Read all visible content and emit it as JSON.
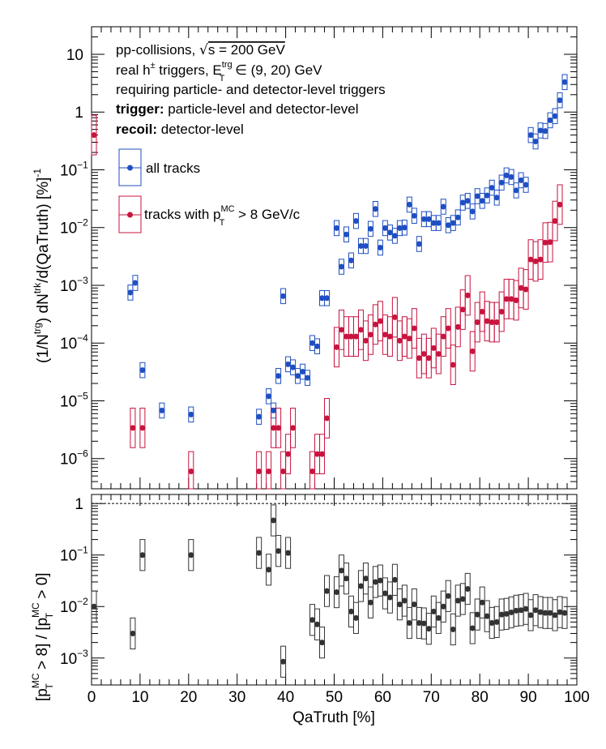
{
  "colors": {
    "all_tracks": "#1f4fc2",
    "hpt_tracks": "#c8143f",
    "ratio": "#333333",
    "axis": "#000000"
  },
  "annotation": {
    "line1": "pp-collisions, ",
    "line1_sqrt": "√",
    "line1_rest": "s = 200 GeV",
    "line2_a": "real h",
    "line2_sup": "±",
    "line2_b": " triggers, E",
    "line2_sup2": "trg",
    "line2_sub": "T",
    "line2_c": " ∈ (9, 20) GeV",
    "line3": "requiring particle- and detector-level triggers",
    "line4_bold": "trigger:",
    "line4_rest": " particle-level and detector-level",
    "line5_bold": "recoil:",
    "line5_rest": " detector-level"
  },
  "legend": {
    "all": "all tracks",
    "hpt_a": "tracks with p",
    "hpt_sup": "MC",
    "hpt_sub": "T",
    "hpt_b": " > 8 GeV/c"
  },
  "top_axis": {
    "ylabel_a": "(1/N",
    "ylabel_sup1": "trg",
    "ylabel_b": ") dN",
    "ylabel_sup2": "trk",
    "ylabel_c": "/d(QaTruth) [%]",
    "ylabel_sup3": "-1",
    "ticks": [
      {
        "value": 10,
        "label": "10"
      },
      {
        "value": 1,
        "label": "1"
      },
      {
        "value": 0.1,
        "label": "10",
        "exp": "−1"
      },
      {
        "value": 0.01,
        "label": "10",
        "exp": "−2"
      },
      {
        "value": 0.001,
        "label": "10",
        "exp": "−3"
      },
      {
        "value": 0.0001,
        "label": "10",
        "exp": "−4"
      },
      {
        "value": 1e-05,
        "label": "10",
        "exp": "−5"
      },
      {
        "value": 1e-06,
        "label": "10",
        "exp": "−6"
      }
    ]
  },
  "bottom_axis": {
    "ylabel_a": "[p",
    "ylabel_sup1": "MC",
    "ylabel_sub1": "T",
    "ylabel_b": " > 8] / [p",
    "ylabel_sup2": "MC",
    "ylabel_sub2": "T",
    "ylabel_c": " > 0]",
    "ticks": [
      {
        "value": 1,
        "label": "1"
      },
      {
        "value": 0.1,
        "label": "10",
        "exp": "−1"
      },
      {
        "value": 0.01,
        "label": "10",
        "exp": "−2"
      },
      {
        "value": 0.001,
        "label": "10",
        "exp": "−3"
      }
    ]
  },
  "xaxis": {
    "label": "QaTruth [%]",
    "ticks": [
      "0",
      "10",
      "20",
      "30",
      "40",
      "50",
      "60",
      "70",
      "80",
      "90",
      "100"
    ]
  },
  "chart_data": [
    {
      "type": "scatter",
      "yscale": "log",
      "xlim": [
        0,
        100
      ],
      "ylim": [
        3e-07,
        30
      ],
      "series": [
        {
          "name": "all tracks",
          "points": [
            [
              8,
              0.00075
            ],
            [
              9,
              0.0011
            ],
            [
              10.5,
              3.4e-05
            ],
            [
              14.5,
              6.8e-06
            ],
            [
              20.5,
              5.8e-06
            ],
            [
              34.5,
              5.3e-06
            ],
            [
              36.5,
              1.2e-05
            ],
            [
              37.5,
              6.8e-06
            ],
            [
              38.5,
              2.7e-05
            ],
            [
              39.5,
              0.00065
            ],
            [
              40.5,
              4.3e-05
            ],
            [
              41.5,
              3.8e-05
            ],
            [
              42.5,
              2.7e-05
            ],
            [
              43.5,
              3.2e-05
            ],
            [
              44.5,
              2.5e-05
            ],
            [
              45.5,
              0.0001
            ],
            [
              46.5,
              8.8e-05
            ],
            [
              47.5,
              0.0006
            ],
            [
              48.5,
              0.0006
            ],
            [
              50.5,
              0.0098
            ],
            [
              51.5,
              0.0021
            ],
            [
              52.5,
              0.0076
            ],
            [
              53.5,
              0.0027
            ],
            [
              54.5,
              0.013
            ],
            [
              55.5,
              0.0048
            ],
            [
              56.5,
              0.0048
            ],
            [
              57.5,
              0.0095
            ],
            [
              58.5,
              0.021
            ],
            [
              59.5,
              0.0045
            ],
            [
              60.5,
              0.0098
            ],
            [
              61.5,
              0.0082
            ],
            [
              62.5,
              0.0072
            ],
            [
              63.5,
              0.0098
            ],
            [
              64.5,
              0.01
            ],
            [
              65.5,
              0.025
            ],
            [
              66.5,
              0.016
            ],
            [
              67.5,
              0.0052
            ],
            [
              68.5,
              0.014
            ],
            [
              69.5,
              0.014
            ],
            [
              70.5,
              0.012
            ],
            [
              71.5,
              0.012
            ],
            [
              72.5,
              0.023
            ],
            [
              73.5,
              0.011
            ],
            [
              74.5,
              0.012
            ],
            [
              75.5,
              0.015
            ],
            [
              76.5,
              0.027
            ],
            [
              77.5,
              0.029
            ],
            [
              78.5,
              0.019
            ],
            [
              79.5,
              0.035
            ],
            [
              80.5,
              0.029
            ],
            [
              81.5,
              0.036
            ],
            [
              82.5,
              0.049
            ],
            [
              83.5,
              0.033
            ],
            [
              84.5,
              0.06
            ],
            [
              85.5,
              0.08
            ],
            [
              86.5,
              0.075
            ],
            [
              87.5,
              0.044
            ],
            [
              88.5,
              0.066
            ],
            [
              89.5,
              0.055
            ],
            [
              90.5,
              0.4
            ],
            [
              91.5,
              0.31
            ],
            [
              92.5,
              0.48
            ],
            [
              93.5,
              0.47
            ],
            [
              94.5,
              0.72
            ],
            [
              95.5,
              0.85
            ],
            [
              96.5,
              1.6
            ],
            [
              97.5,
              3.3
            ]
          ]
        },
        {
          "name": "tracks with pT(MC) > 8 GeV/c",
          "points": [
            [
              0.5,
              0.4
            ],
            [
              8.5,
              3.4e-06
            ],
            [
              10.5,
              3.4e-06
            ],
            [
              20.5,
              6e-07
            ],
            [
              34.5,
              6e-07
            ],
            [
              36.5,
              6e-07
            ],
            [
              37.5,
              3.4e-06
            ],
            [
              38.5,
              3.4e-06
            ],
            [
              39.5,
              6e-07
            ],
            [
              40.5,
              1.2e-06
            ],
            [
              41.5,
              3.4e-06
            ],
            [
              45.5,
              6e-07
            ],
            [
              46.5,
              1.2e-06
            ],
            [
              47.5,
              1.2e-06
            ],
            [
              48.5,
              5e-06
            ],
            [
              50.5,
              8.5e-05
            ],
            [
              51.5,
              0.00017
            ],
            [
              52.5,
              0.00013
            ],
            [
              53.5,
              0.00013
            ],
            [
              54.5,
              0.00013
            ],
            [
              55.5,
              0.00017
            ],
            [
              56.5,
              0.00011
            ],
            [
              57.5,
              0.00014
            ],
            [
              58.5,
              0.00021
            ],
            [
              59.5,
              0.00024
            ],
            [
              60.5,
              0.00014
            ],
            [
              61.5,
              0.00013
            ],
            [
              62.5,
              0.00028
            ],
            [
              63.5,
              0.00011
            ],
            [
              64.5,
              0.00013
            ],
            [
              65.5,
              0.00012
            ],
            [
              66.5,
              0.00018
            ],
            [
              67.5,
              5.5e-05
            ],
            [
              68.5,
              6.5e-05
            ],
            [
              69.5,
              5.5e-05
            ],
            [
              70.5,
              8.2e-05
            ],
            [
              71.5,
              6.5e-05
            ],
            [
              72.5,
              0.00013
            ],
            [
              73.5,
              0.00018
            ],
            [
              74.5,
              4.2e-05
            ],
            [
              75.5,
              0.00019
            ],
            [
              76.5,
              0.00038
            ],
            [
              77.5,
              0.00067
            ],
            [
              78.5,
              7.2e-05
            ],
            [
              79.5,
              0.00023
            ],
            [
              80.5,
              0.00035
            ],
            [
              81.5,
              0.00024
            ],
            [
              82.5,
              0.00023
            ],
            [
              83.5,
              0.00023
            ],
            [
              84.5,
              0.00035
            ],
            [
              85.5,
              0.00058
            ],
            [
              86.5,
              0.00058
            ],
            [
              87.5,
              0.00055
            ],
            [
              88.5,
              0.0009
            ],
            [
              89.5,
              0.00085
            ],
            [
              90.5,
              0.0028
            ],
            [
              91.5,
              0.0026
            ],
            [
              92.5,
              0.0028
            ],
            [
              93.5,
              0.0055
            ],
            [
              94.5,
              0.0056
            ],
            [
              95.5,
              0.013
            ],
            [
              96.5,
              0.025
            ]
          ]
        }
      ]
    },
    {
      "type": "scatter",
      "yscale": "log",
      "xlim": [
        0,
        100
      ],
      "ylim": [
        0.0003,
        1.5
      ],
      "reference_line": 1,
      "series": [
        {
          "name": "ratio",
          "points": [
            [
              0.5,
              0.01
            ],
            [
              8.5,
              0.003
            ],
            [
              10.5,
              0.1
            ],
            [
              20.5,
              0.1
            ],
            [
              34.5,
              0.11
            ],
            [
              36.5,
              0.052
            ],
            [
              37.5,
              0.47
            ],
            [
              38.5,
              0.12
            ],
            [
              39.5,
              0.00085
            ],
            [
              40.5,
              0.11
            ],
            [
              45.5,
              0.0055
            ],
            [
              46.5,
              0.0045
            ],
            [
              47.5,
              0.002
            ],
            [
              48.5,
              0.02
            ],
            [
              50.5,
              0.019
            ],
            [
              51.5,
              0.05
            ],
            [
              52.5,
              0.035
            ],
            [
              53.5,
              0.008
            ],
            [
              54.5,
              0.006
            ],
            [
              55.5,
              0.025
            ],
            [
              56.5,
              0.035
            ],
            [
              57.5,
              0.012
            ],
            [
              58.5,
              0.03
            ],
            [
              59.5,
              0.032
            ],
            [
              60.5,
              0.018
            ],
            [
              61.5,
              0.015
            ],
            [
              62.5,
              0.033
            ],
            [
              63.5,
              0.011
            ],
            [
              64.5,
              0.013
            ],
            [
              65.5,
              0.0048
            ],
            [
              66.5,
              0.011
            ],
            [
              67.5,
              0.0048
            ],
            [
              68.5,
              0.0047
            ],
            [
              69.5,
              0.0037
            ],
            [
              70.5,
              0.008
            ],
            [
              71.5,
              0.006
            ],
            [
              72.5,
              0.01
            ],
            [
              73.5,
              0.016
            ],
            [
              74.5,
              0.0036
            ],
            [
              75.5,
              0.013
            ],
            [
              76.5,
              0.014
            ],
            [
              77.5,
              0.022
            ],
            [
              78.5,
              0.0038
            ],
            [
              79.5,
              0.007
            ],
            [
              80.5,
              0.012
            ],
            [
              81.5,
              0.0065
            ],
            [
              82.5,
              0.0048
            ],
            [
              83.5,
              0.005
            ],
            [
              84.5,
              0.007
            ],
            [
              85.5,
              0.0072
            ],
            [
              86.5,
              0.0077
            ],
            [
              87.5,
              0.0083
            ],
            [
              88.5,
              0.0085
            ],
            [
              89.5,
              0.009
            ],
            [
              90.5,
              0.0068
            ],
            [
              91.5,
              0.0085
            ],
            [
              92.5,
              0.0078
            ],
            [
              93.5,
              0.0075
            ],
            [
              94.5,
              0.0075
            ],
            [
              95.5,
              0.0068
            ],
            [
              96.5,
              0.0078
            ],
            [
              97.5,
              0.0075
            ]
          ]
        }
      ]
    }
  ]
}
